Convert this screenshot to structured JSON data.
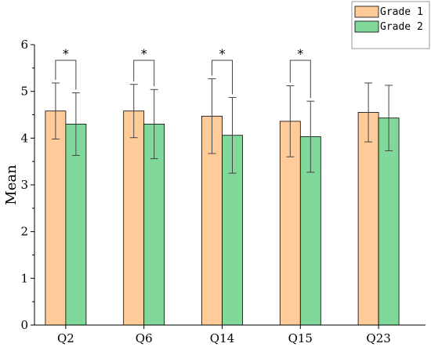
{
  "chart_data": {
    "type": "bar",
    "title": "",
    "xlabel": "",
    "ylabel": "Mean",
    "ylim": [
      0,
      6
    ],
    "yticks": [
      "0",
      "1",
      "2",
      "3",
      "4",
      "5",
      "6"
    ],
    "categories": [
      "Q2",
      "Q6",
      "Q14",
      "Q15",
      "Q23"
    ],
    "series": [
      {
        "name": "Grade 1",
        "color": "#FFCC99",
        "values": [
          4.58,
          4.58,
          4.47,
          4.36,
          4.55
        ],
        "error": [
          0.6,
          0.57,
          0.8,
          0.76,
          0.63
        ]
      },
      {
        "name": "Grade 2",
        "color": "#80D99A",
        "values": [
          4.3,
          4.3,
          4.06,
          4.03,
          4.43
        ],
        "error": [
          0.67,
          0.74,
          0.81,
          0.76,
          0.7
        ]
      }
    ],
    "significance": {
      "marker": "*",
      "categories": [
        "Q2",
        "Q6",
        "Q14",
        "Q15"
      ]
    },
    "legend": {
      "placement": "top-right"
    },
    "grid": false
  }
}
